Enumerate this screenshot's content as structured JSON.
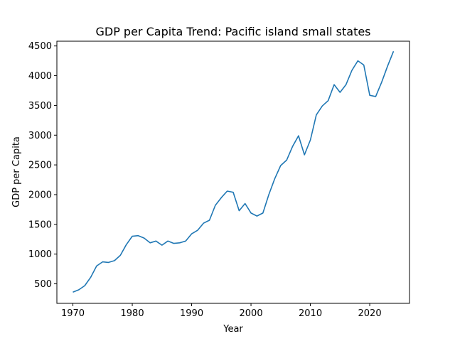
{
  "chart_data": {
    "type": "line",
    "title": "GDP per Capita Trend: Pacific island small states",
    "xlabel": "Year",
    "ylabel": "GDP per Capita",
    "xlim": [
      1967.3,
      2026.7
    ],
    "ylim": [
      172,
      4580
    ],
    "x_ticks": [
      1970,
      1980,
      1990,
      2000,
      2010,
      2020
    ],
    "y_ticks": [
      500,
      1000,
      1500,
      2000,
      2500,
      3000,
      3500,
      4000,
      4500
    ],
    "grid": false,
    "series_color": "#1f77b4",
    "series": [
      {
        "x": [
          1970,
          1971,
          1972,
          1973,
          1974,
          1975,
          1976,
          1977,
          1978,
          1979,
          1980,
          1981,
          1982,
          1983,
          1984,
          1985,
          1986,
          1987,
          1988,
          1989,
          1990,
          1991,
          1992,
          1993,
          1994,
          1995,
          1996,
          1997,
          1998,
          1999,
          2000,
          2001,
          2002,
          2003,
          2004,
          2005,
          2006,
          2007,
          2008,
          2009,
          2010,
          2011,
          2012,
          2013,
          2014,
          2015,
          2016,
          2017,
          2018,
          2019,
          2020,
          2021,
          2022,
          2023,
          2024
        ],
        "values": [
          360,
          400,
          470,
          610,
          800,
          870,
          860,
          890,
          980,
          1160,
          1300,
          1310,
          1270,
          1190,
          1220,
          1150,
          1220,
          1180,
          1190,
          1220,
          1340,
          1400,
          1520,
          1570,
          1820,
          1950,
          2060,
          2040,
          1730,
          1850,
          1690,
          1640,
          1690,
          2000,
          2270,
          2490,
          2580,
          2810,
          2990,
          2670,
          2920,
          3340,
          3490,
          3580,
          3850,
          3720,
          3850,
          4090,
          4250,
          4180,
          3670,
          3650,
          3890,
          4160,
          4410
        ]
      }
    ]
  }
}
